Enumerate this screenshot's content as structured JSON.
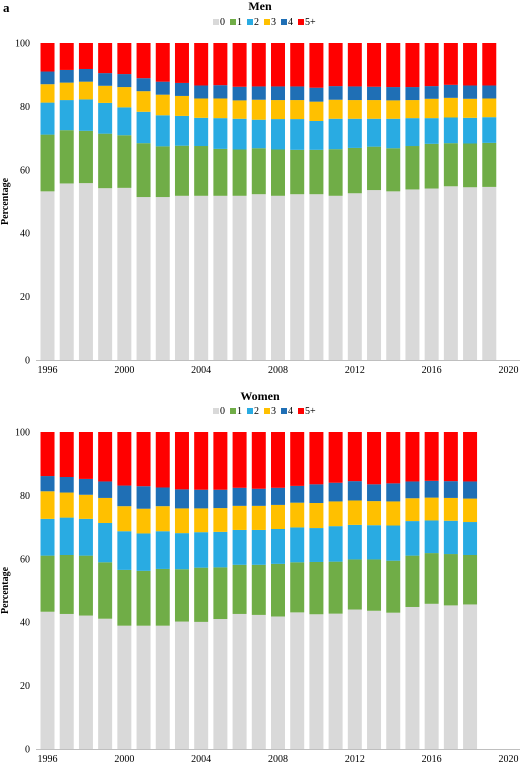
{
  "panel_label": "a",
  "colors": {
    "0": "#d9d9d9",
    "1": "#70ad47",
    "2": "#29abe2",
    "3": "#ffc000",
    "4": "#1f6fb5",
    "5+": "#ff0000",
    "axis": "#bfbfbf"
  },
  "chart_data": [
    {
      "type": "bar",
      "stacked": true,
      "title": "Men",
      "ylabel": "Percentage",
      "ylim": [
        0,
        100
      ],
      "yticks": [
        0,
        20,
        40,
        60,
        80,
        100
      ],
      "xlim": [
        1995.4,
        2020.6
      ],
      "xticks": [
        1996,
        2000,
        2004,
        2008,
        2012,
        2016,
        2020
      ],
      "legend_position": "top-center",
      "x": [
        1996,
        1997,
        1998,
        1999,
        2000,
        2001,
        2002,
        2003,
        2004,
        2005,
        2006,
        2007,
        2008,
        2009,
        2010,
        2011,
        2012,
        2013,
        2014,
        2015,
        2016,
        2017,
        2018,
        2019
      ],
      "series": [
        {
          "name": "0",
          "values": [
            53.2,
            55.7,
            55.8,
            54.2,
            54.3,
            51.4,
            51.4,
            51.8,
            51.8,
            51.8,
            51.8,
            52.3,
            51.8,
            52.3,
            52.3,
            51.8,
            52.6,
            53.6,
            53.2,
            53.8,
            54.1,
            54.8,
            54.5,
            54.6
          ]
        },
        {
          "name": "1",
          "values": [
            17.9,
            16.8,
            16.5,
            17.2,
            16.6,
            17.0,
            16.0,
            15.8,
            15.7,
            14.8,
            14.6,
            14.5,
            14.6,
            14.0,
            14.0,
            14.7,
            14.3,
            13.7,
            13.6,
            13.7,
            14.1,
            13.6,
            13.8,
            13.9
          ]
        },
        {
          "name": "2",
          "values": [
            10.1,
            9.5,
            9.9,
            9.7,
            8.8,
            9.9,
            9.8,
            9.4,
            8.9,
            9.7,
            9.7,
            9.0,
            9.6,
            9.7,
            9.1,
            9.6,
            9.2,
            8.8,
            9.3,
            8.8,
            8.1,
            8.1,
            8.1,
            8.1
          ]
        },
        {
          "name": "3",
          "values": [
            5.8,
            5.5,
            5.6,
            5.4,
            6.4,
            6.5,
            6.5,
            6.3,
            6.1,
            6.2,
            5.8,
            6.3,
            6.0,
            6.0,
            6.1,
            6.0,
            5.9,
            5.9,
            5.8,
            5.7,
            6.1,
            6.2,
            6.0,
            5.9
          ]
        },
        {
          "name": "4",
          "values": [
            4.0,
            4.0,
            4.0,
            4.0,
            4.1,
            4.1,
            4.1,
            4.1,
            4.1,
            4.2,
            4.3,
            4.2,
            4.3,
            4.3,
            4.4,
            4.3,
            4.3,
            4.2,
            4.2,
            4.1,
            4.0,
            4.1,
            4.2,
            4.1
          ]
        },
        {
          "name": "5+",
          "values": [
            9.0,
            8.5,
            8.2,
            9.5,
            9.8,
            11.1,
            12.2,
            12.6,
            13.4,
            13.3,
            13.8,
            13.7,
            13.7,
            13.7,
            14.1,
            13.6,
            13.7,
            13.8,
            13.9,
            13.9,
            13.6,
            13.2,
            13.4,
            13.4
          ]
        }
      ]
    },
    {
      "type": "bar",
      "stacked": true,
      "title": "Women",
      "ylabel": "Percentage",
      "ylim": [
        0,
        100
      ],
      "yticks": [
        0,
        20,
        40,
        60,
        80,
        100
      ],
      "xlim": [
        1995.4,
        2020.6
      ],
      "xticks": [
        1996,
        2000,
        2004,
        2008,
        2012,
        2016,
        2020
      ],
      "legend_position": "top-center",
      "x": [
        1996,
        1997,
        1998,
        1999,
        2000,
        2001,
        2002,
        2003,
        2004,
        2005,
        2006,
        2007,
        2008,
        2009,
        2010,
        2011,
        2012,
        2013,
        2014,
        2015,
        2016,
        2017,
        2018
      ],
      "series": [
        {
          "name": "0",
          "values": [
            43.3,
            42.6,
            42.1,
            41.1,
            38.9,
            38.9,
            38.9,
            40.2,
            40.1,
            41.0,
            42.6,
            42.3,
            41.8,
            43.1,
            42.5,
            42.7,
            44.0,
            43.6,
            43.0,
            44.8,
            45.8,
            45.3,
            45.6
          ]
        },
        {
          "name": "1",
          "values": [
            17.7,
            18.6,
            18.9,
            17.8,
            17.6,
            17.3,
            17.9,
            16.5,
            17.1,
            16.3,
            15.5,
            15.8,
            16.6,
            15.8,
            16.5,
            16.4,
            15.8,
            16.2,
            16.4,
            16.2,
            16.0,
            16.2,
            15.6
          ]
        },
        {
          "name": "2",
          "values": [
            11.6,
            11.8,
            11.6,
            12.4,
            12.2,
            11.8,
            11.9,
            11.4,
            11.2,
            11.2,
            11.0,
            11.0,
            11.0,
            11.0,
            10.7,
            11.2,
            10.9,
            10.8,
            11.1,
            10.9,
            10.3,
            10.5,
            10.4
          ]
        },
        {
          "name": "3",
          "values": [
            8.7,
            7.9,
            7.6,
            7.9,
            7.9,
            7.8,
            7.9,
            7.8,
            7.5,
            7.5,
            7.6,
            7.6,
            7.6,
            7.8,
            7.9,
            7.8,
            7.7,
            7.6,
            7.6,
            7.2,
            7.2,
            7.2,
            7.4
          ]
        },
        {
          "name": "4",
          "values": [
            4.8,
            4.9,
            5.0,
            5.2,
            6.5,
            7.1,
            5.9,
            6.0,
            5.9,
            5.8,
            5.7,
            5.4,
            5.4,
            5.3,
            5.9,
            5.9,
            6.1,
            5.3,
            5.7,
            5.3,
            5.3,
            5.3,
            5.4
          ]
        },
        {
          "name": "5+",
          "values": [
            13.9,
            14.2,
            14.8,
            15.6,
            16.9,
            17.1,
            17.5,
            18.1,
            18.2,
            18.2,
            17.6,
            17.9,
            17.6,
            17.0,
            16.5,
            16.0,
            15.5,
            16.5,
            16.2,
            15.6,
            15.4,
            15.5,
            15.6
          ]
        }
      ]
    }
  ]
}
